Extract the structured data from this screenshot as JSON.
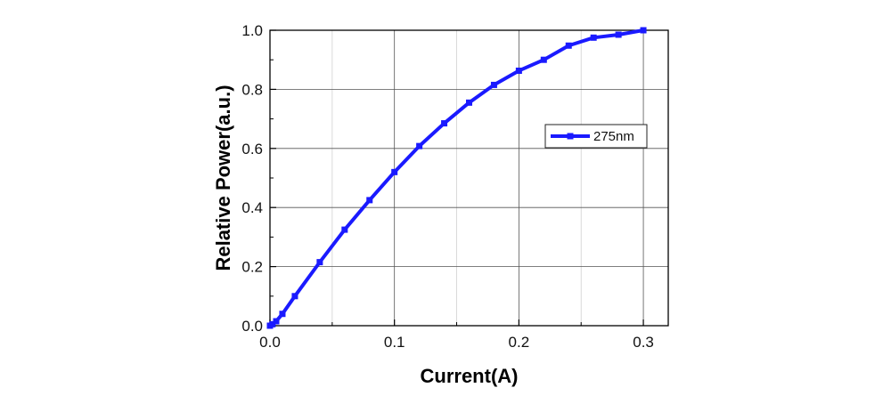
{
  "chart_data": {
    "type": "line",
    "title": "",
    "xlabel": "Current(A)",
    "ylabel": "Relative Power(a.u.)",
    "xlim": [
      0.0,
      0.32
    ],
    "ylim": [
      0.0,
      1.0
    ],
    "xticks": [
      "0.0",
      "0.1",
      "0.2",
      "0.3"
    ],
    "yticks": [
      "0.0",
      "0.2",
      "0.4",
      "0.6",
      "0.8",
      "1.0"
    ],
    "xtick_values": [
      0.0,
      0.1,
      0.2,
      0.3
    ],
    "ytick_values": [
      0.0,
      0.2,
      0.4,
      0.6,
      0.8,
      1.0
    ],
    "grid": true,
    "legend_position": "right, upper-middle",
    "series": [
      {
        "name": "275nm",
        "color": "#1a1aff",
        "marker": "square",
        "x": [
          0.0,
          0.002,
          0.005,
          0.01,
          0.02,
          0.04,
          0.06,
          0.08,
          0.1,
          0.12,
          0.14,
          0.16,
          0.18,
          0.2,
          0.22,
          0.24,
          0.26,
          0.28,
          0.3
        ],
        "y": [
          0.0,
          0.005,
          0.015,
          0.04,
          0.1,
          0.215,
          0.325,
          0.425,
          0.52,
          0.608,
          0.685,
          0.755,
          0.815,
          0.863,
          0.9,
          0.948,
          0.975,
          0.985,
          1.0
        ]
      }
    ]
  }
}
